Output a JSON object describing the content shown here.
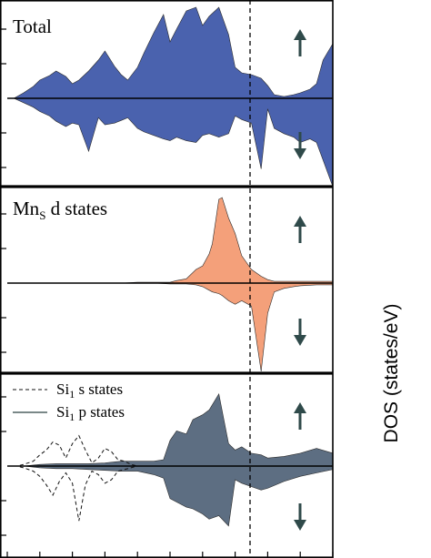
{
  "chart_data": {
    "type": "area",
    "ylabel": "DOS (states/eV)",
    "x_axis": {
      "ticks_count": 11,
      "fermi_level_marker": "dashed vertical line"
    },
    "spin_indicators": {
      "up": "arrow-up-icon",
      "down": "arrow-down-icon"
    },
    "panels": [
      {
        "label": "Total",
        "label_subscript": "",
        "label_suffix": "",
        "color": "#4a62ae",
        "series": [
          {
            "spin": "up",
            "x": [
              0,
              0.02,
              0.05,
              0.08,
              0.1,
              0.13,
              0.15,
              0.18,
              0.2,
              0.22,
              0.25,
              0.28,
              0.3,
              0.33,
              0.35,
              0.37,
              0.4,
              0.42,
              0.45,
              0.48,
              0.5,
              0.52,
              0.55,
              0.58,
              0.6,
              0.62,
              0.65,
              0.68,
              0.7,
              0.72,
              0.75,
              0.78,
              0.8,
              0.82,
              0.85,
              0.88,
              0.9,
              0.93,
              0.95,
              0.97,
              1.0
            ],
            "y": [
              0.0,
              0.0,
              0.06,
              0.13,
              0.2,
              0.25,
              0.3,
              0.24,
              0.16,
              0.2,
              0.3,
              0.42,
              0.52,
              0.35,
              0.26,
              0.2,
              0.34,
              0.5,
              0.72,
              0.92,
              0.62,
              0.76,
              0.96,
              1.0,
              0.8,
              0.9,
              1.0,
              0.7,
              0.34,
              0.28,
              0.26,
              0.22,
              0.14,
              0.04,
              0.02,
              0.04,
              0.06,
              0.1,
              0.16,
              0.42,
              0.6
            ]
          },
          {
            "spin": "down",
            "x": [
              0,
              0.02,
              0.05,
              0.08,
              0.1,
              0.13,
              0.15,
              0.18,
              0.2,
              0.22,
              0.25,
              0.28,
              0.3,
              0.33,
              0.35,
              0.37,
              0.4,
              0.42,
              0.45,
              0.48,
              0.5,
              0.52,
              0.55,
              0.58,
              0.6,
              0.62,
              0.65,
              0.68,
              0.7,
              0.72,
              0.75,
              0.78,
              0.8,
              0.82,
              0.85,
              0.88,
              0.9,
              0.93,
              0.95,
              0.97,
              1.0
            ],
            "y": [
              0.0,
              0.0,
              0.05,
              0.1,
              0.15,
              0.2,
              0.26,
              0.32,
              0.28,
              0.3,
              0.6,
              0.22,
              0.3,
              0.28,
              0.25,
              0.22,
              0.34,
              0.38,
              0.42,
              0.46,
              0.48,
              0.44,
              0.48,
              0.5,
              0.42,
              0.4,
              0.44,
              0.4,
              0.2,
              0.24,
              0.28,
              0.8,
              0.12,
              0.34,
              0.4,
              0.44,
              0.5,
              0.46,
              0.5,
              0.7,
              1.0
            ]
          }
        ]
      },
      {
        "label": "Mn",
        "label_subscript": "S",
        "label_suffix": " d states",
        "color": "#f4a07a",
        "series": [
          {
            "spin": "up",
            "x": [
              0,
              0.02,
              0.05,
              0.1,
              0.15,
              0.2,
              0.25,
              0.3,
              0.35,
              0.4,
              0.45,
              0.5,
              0.52,
              0.55,
              0.58,
              0.6,
              0.62,
              0.63,
              0.65,
              0.66,
              0.68,
              0.7,
              0.72,
              0.75,
              0.78,
              0.8,
              0.82,
              0.85,
              0.88,
              0.9,
              0.95,
              1.0
            ],
            "y": [
              0.0,
              0.0,
              0.0,
              0.0,
              0.0,
              0.0,
              0.0,
              0.0,
              0.0,
              0.01,
              0.01,
              0.01,
              0.03,
              0.05,
              0.16,
              0.2,
              0.34,
              0.46,
              0.98,
              1.0,
              0.76,
              0.58,
              0.32,
              0.16,
              0.08,
              0.04,
              0.02,
              0.02,
              0.02,
              0.02,
              0.02,
              0.02
            ]
          },
          {
            "spin": "down",
            "x": [
              0,
              0.02,
              0.05,
              0.1,
              0.15,
              0.2,
              0.25,
              0.3,
              0.35,
              0.4,
              0.45,
              0.5,
              0.52,
              0.55,
              0.58,
              0.6,
              0.62,
              0.63,
              0.65,
              0.66,
              0.68,
              0.7,
              0.72,
              0.75,
              0.78,
              0.8,
              0.82,
              0.85,
              0.88,
              0.9,
              0.95,
              1.0
            ],
            "y": [
              0.0,
              0.0,
              0.0,
              0.0,
              0.0,
              0.0,
              0.0,
              0.0,
              0.0,
              0.0,
              0.0,
              0.01,
              0.01,
              0.01,
              0.02,
              0.04,
              0.08,
              0.1,
              0.12,
              0.14,
              0.2,
              0.24,
              0.2,
              0.26,
              1.0,
              0.34,
              0.1,
              0.06,
              0.04,
              0.03,
              0.02,
              0.02
            ]
          }
        ]
      },
      {
        "label": "",
        "label_subscript": "",
        "label_suffix": "",
        "color": "#5d6e82",
        "legend": [
          {
            "prefix": "Si",
            "subscript": "1",
            "suffix": " s states",
            "style": "dashed"
          },
          {
            "prefix": "Si",
            "subscript": "1",
            "suffix": " p states",
            "style": "solid"
          }
        ],
        "series": [
          {
            "spin": "up",
            "x": [
              0,
              0.05,
              0.1,
              0.15,
              0.2,
              0.25,
              0.3,
              0.35,
              0.4,
              0.45,
              0.48,
              0.5,
              0.52,
              0.55,
              0.57,
              0.6,
              0.62,
              0.65,
              0.68,
              0.7,
              0.72,
              0.75,
              0.78,
              0.8,
              0.85,
              0.9,
              0.95,
              1.0
            ],
            "y": [
              0.0,
              0.0,
              0.02,
              0.03,
              0.03,
              0.03,
              0.04,
              0.06,
              0.06,
              0.06,
              0.08,
              0.32,
              0.44,
              0.4,
              0.58,
              0.64,
              0.7,
              0.9,
              0.28,
              0.2,
              0.24,
              0.16,
              0.14,
              0.1,
              0.12,
              0.16,
              0.22,
              0.16
            ]
          },
          {
            "spin": "down",
            "x": [
              0,
              0.05,
              0.1,
              0.15,
              0.2,
              0.25,
              0.3,
              0.35,
              0.4,
              0.45,
              0.48,
              0.5,
              0.52,
              0.55,
              0.57,
              0.6,
              0.62,
              0.65,
              0.68,
              0.7,
              0.72,
              0.75,
              0.78,
              0.8,
              0.85,
              0.9,
              0.95,
              1.0
            ],
            "y": [
              0.0,
              0.0,
              0.02,
              0.03,
              0.03,
              0.04,
              0.05,
              0.06,
              0.06,
              0.1,
              0.14,
              0.38,
              0.42,
              0.48,
              0.5,
              0.56,
              0.62,
              0.58,
              0.7,
              0.16,
              0.2,
              0.24,
              0.28,
              0.26,
              0.18,
              0.12,
              0.08,
              0.04
            ]
          },
          {
            "spin": "up",
            "style": "dashed-s",
            "x": [
              0,
              0.03,
              0.05,
              0.08,
              0.1,
              0.12,
              0.14,
              0.16,
              0.18,
              0.2,
              0.22,
              0.24,
              0.26,
              0.28,
              0.3,
              0.32,
              0.34,
              0.36,
              0.38,
              0.4,
              0.45,
              0.5,
              1.0
            ],
            "y": [
              0.0,
              0.0,
              0.02,
              0.06,
              0.14,
              0.2,
              0.3,
              0.26,
              0.1,
              0.28,
              0.38,
              0.2,
              0.04,
              0.1,
              0.22,
              0.18,
              0.08,
              0.06,
              0.02,
              0.0,
              0.0,
              0.0,
              0.0
            ]
          },
          {
            "spin": "down",
            "style": "dashed-s",
            "x": [
              0,
              0.03,
              0.05,
              0.08,
              0.1,
              0.12,
              0.14,
              0.16,
              0.18,
              0.2,
              0.22,
              0.24,
              0.26,
              0.28,
              0.3,
              0.32,
              0.34,
              0.36,
              0.38,
              0.4,
              0.45,
              0.5,
              1.0
            ],
            "y": [
              0.0,
              0.0,
              0.02,
              0.06,
              0.12,
              0.22,
              0.34,
              0.18,
              0.08,
              0.2,
              0.64,
              0.22,
              0.06,
              0.1,
              0.2,
              0.16,
              0.06,
              0.04,
              0.02,
              0.0,
              0.0,
              0.0,
              0.0
            ]
          }
        ]
      }
    ]
  }
}
